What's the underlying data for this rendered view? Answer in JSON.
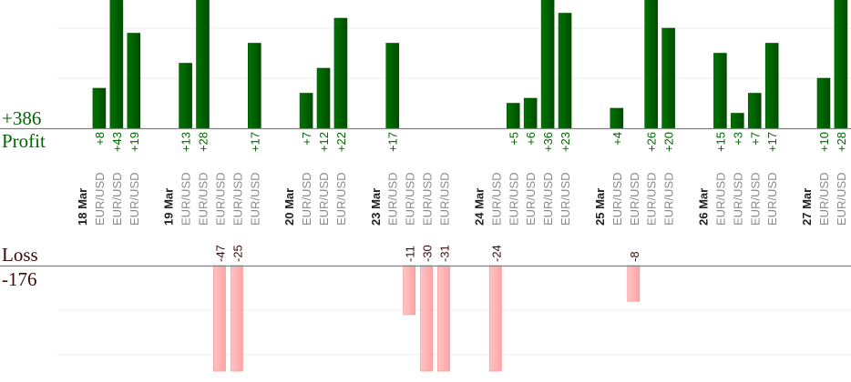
{
  "chart_data": {
    "type": "bar",
    "title": "",
    "profit_panel": {
      "label": "Profit",
      "total": "+386",
      "ylim": [
        0,
        25
      ],
      "gridlines": [
        10,
        20
      ]
    },
    "loss_panel": {
      "label": "Loss",
      "total": "-176",
      "ylim": [
        0,
        23
      ],
      "gridlines": [
        10,
        20
      ]
    },
    "groups": [
      {
        "date": "18 Mar",
        "trades": [
          {
            "symbol": "EUR/USD",
            "value": 8
          },
          {
            "symbol": "EUR/USD",
            "value": 43
          },
          {
            "symbol": "EUR/USD",
            "value": 19
          }
        ]
      },
      {
        "date": "19 Mar",
        "trades": [
          {
            "symbol": "EUR/USD",
            "value": 13
          },
          {
            "symbol": "EUR/USD",
            "value": 28
          },
          {
            "symbol": "EUR/USD",
            "value": -47
          },
          {
            "symbol": "EUR/USD",
            "value": -25
          },
          {
            "symbol": "EUR/USD",
            "value": 17
          }
        ]
      },
      {
        "date": "20 Mar",
        "trades": [
          {
            "symbol": "EUR/USD",
            "value": 7
          },
          {
            "symbol": "EUR/USD",
            "value": 12
          },
          {
            "symbol": "EUR/USD",
            "value": 22
          }
        ]
      },
      {
        "date": "23 Mar",
        "trades": [
          {
            "symbol": "EUR/USD",
            "value": 17
          },
          {
            "symbol": "EUR/USD",
            "value": -11
          },
          {
            "symbol": "EUR/USD",
            "value": -30
          },
          {
            "symbol": "EUR/USD",
            "value": -31
          }
        ]
      },
      {
        "date": "24 Mar",
        "trades": [
          {
            "symbol": "EUR/USD",
            "value": -24
          },
          {
            "symbol": "EUR/USD",
            "value": 5
          },
          {
            "symbol": "EUR/USD",
            "value": 6
          },
          {
            "symbol": "EUR/USD",
            "value": 36
          },
          {
            "symbol": "EUR/USD",
            "value": 23
          }
        ]
      },
      {
        "date": "25 Mar",
        "trades": [
          {
            "symbol": "EUR/USD",
            "value": 4
          },
          {
            "symbol": "EUR/USD",
            "value": -8
          },
          {
            "symbol": "EUR/USD",
            "value": 26
          },
          {
            "symbol": "EUR/USD",
            "value": 20
          }
        ]
      },
      {
        "date": "26 Mar",
        "trades": [
          {
            "symbol": "EUR/USD",
            "value": 15
          },
          {
            "symbol": "EUR/USD",
            "value": 3
          },
          {
            "symbol": "EUR/USD",
            "value": 7
          },
          {
            "symbol": "EUR/USD",
            "value": 17
          }
        ]
      },
      {
        "date": "27 Mar",
        "trades": [
          {
            "symbol": "EUR/USD",
            "value": 10
          },
          {
            "symbol": "EUR/USD",
            "value": 28
          }
        ]
      }
    ],
    "colors": {
      "profit": "#006600",
      "loss": "#ffb0b0",
      "loss_text": "#3a0a0a",
      "date_text": "#222222",
      "symbol_text": "#8a8a8a"
    }
  }
}
